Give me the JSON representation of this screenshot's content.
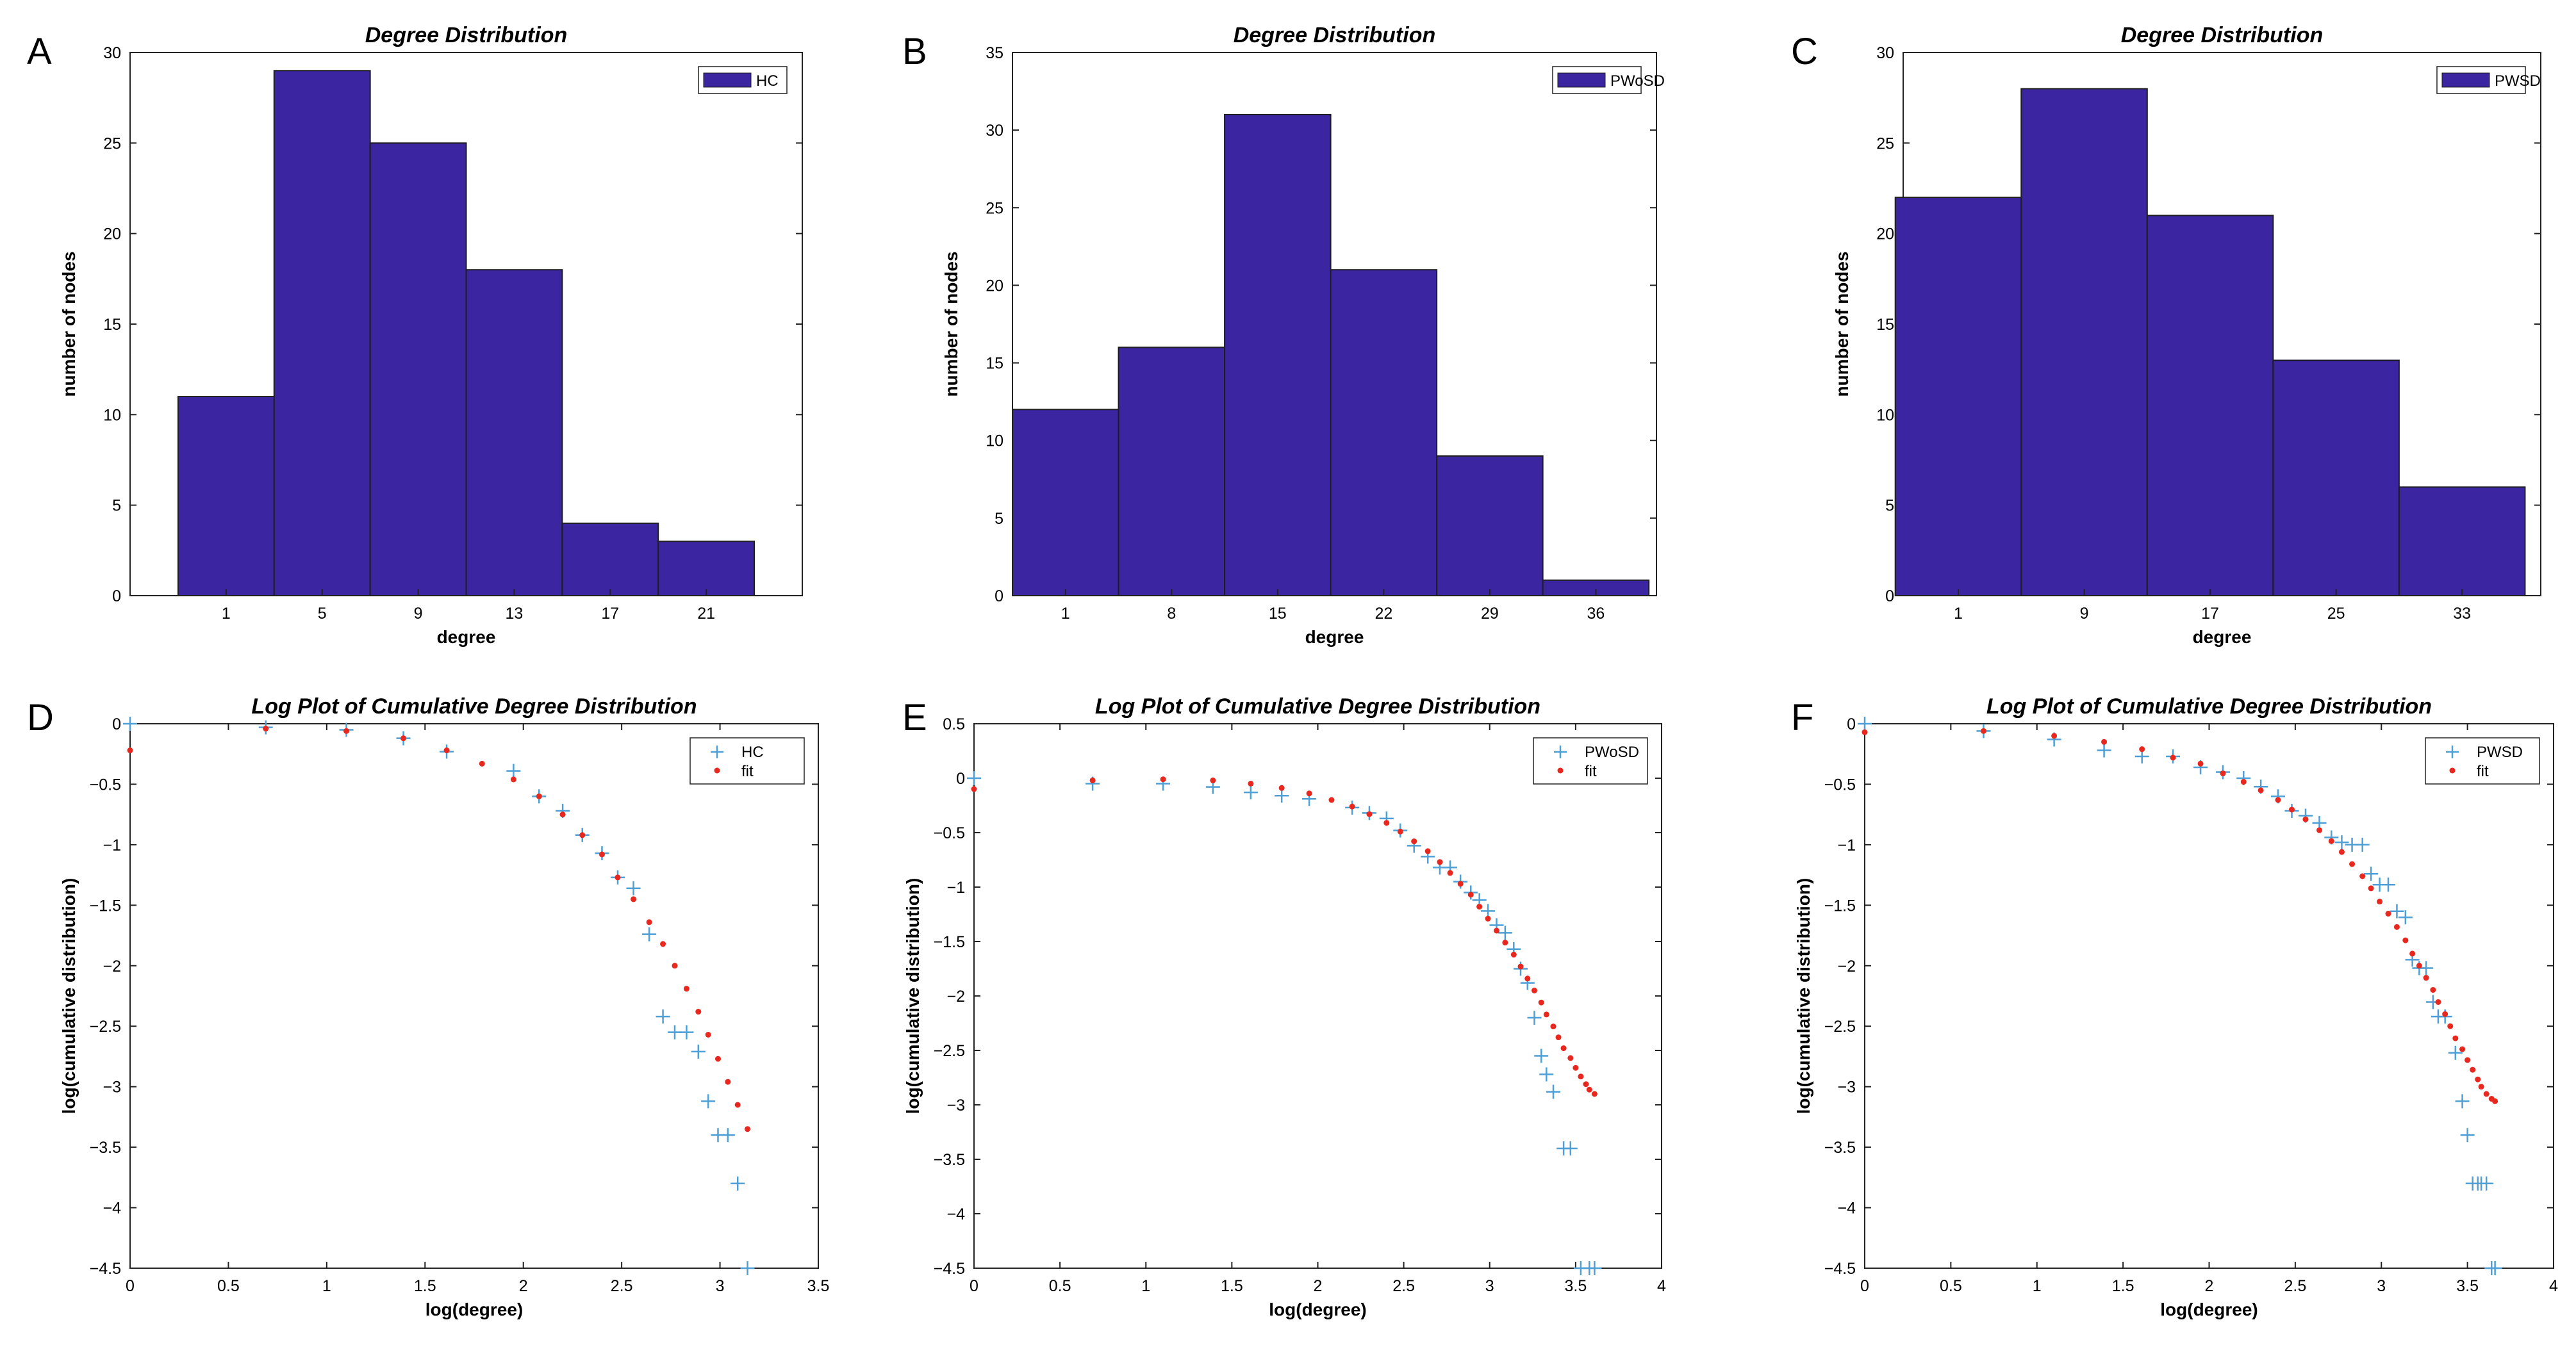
{
  "figure": {
    "panel_letters": [
      "A",
      "B",
      "C",
      "D",
      "E",
      "F"
    ]
  },
  "chart_data": [
    {
      "panel": "A",
      "type": "bar",
      "title": "Degree Distribution",
      "xlabel": "degree",
      "ylabel": "number of nodes",
      "categories": [
        "1",
        "5",
        "9",
        "13",
        "17",
        "21"
      ],
      "values": [
        11,
        29,
        25,
        18,
        4,
        3
      ],
      "xlim": [
        -3,
        25
      ],
      "bin_width": 4,
      "ylim": [
        0,
        30
      ],
      "yticks": [
        0,
        5,
        10,
        15,
        20,
        25,
        30
      ],
      "legend": [
        "HC"
      ],
      "legend_position": "top-right",
      "bar_color": "#3b25a0"
    },
    {
      "panel": "B",
      "type": "bar",
      "title": "Degree Distribution",
      "xlabel": "degree",
      "ylabel": "number of nodes",
      "categories": [
        "1",
        "8",
        "15",
        "22",
        "29",
        "36"
      ],
      "values": [
        12,
        16,
        31,
        21,
        9,
        1
      ],
      "xlim": [
        -2.5,
        40
      ],
      "bin_width": 7,
      "ylim": [
        0,
        35
      ],
      "yticks": [
        0,
        5,
        10,
        15,
        20,
        25,
        30,
        35
      ],
      "legend": [
        "PWoSD"
      ],
      "legend_position": "top-right",
      "bar_color": "#3b25a0"
    },
    {
      "panel": "C",
      "type": "bar",
      "title": "Degree Distribution",
      "xlabel": "degree",
      "ylabel": "number of nodes",
      "categories": [
        "1",
        "9",
        "17",
        "25",
        "33"
      ],
      "values": [
        22,
        28,
        21,
        13,
        6
      ],
      "xlim": [
        -2.5,
        38
      ],
      "bin_width": 8,
      "ylim": [
        0,
        30
      ],
      "yticks": [
        0,
        5,
        10,
        15,
        20,
        25,
        30
      ],
      "legend": [
        "PWSD"
      ],
      "legend_position": "top-right",
      "bar_color": "#3b25a0"
    },
    {
      "panel": "D",
      "type": "scatter",
      "title": "Log Plot of Cumulative Degree Distribution",
      "xlabel": "log(degree)",
      "ylabel": "log(cumulative distribution)",
      "xlim": [
        0,
        3.5
      ],
      "ylim": [
        -4.5,
        0
      ],
      "xticks": [
        0,
        0.5,
        1,
        1.5,
        2,
        2.5,
        3,
        3.5
      ],
      "yticks": [
        0,
        -0.5,
        -1,
        -1.5,
        -2,
        -2.5,
        -3,
        -3.5,
        -4,
        -4.5
      ],
      "legend_position": "top-right",
      "series": [
        {
          "name": "HC",
          "marker": "+",
          "color": "#4d9fd6",
          "x": [
            0,
            0.69,
            1.1,
            1.39,
            1.61,
            1.95,
            2.08,
            2.2,
            2.3,
            2.4,
            2.48,
            2.56,
            2.64,
            2.71,
            2.77,
            2.83,
            2.89,
            2.94,
            2.99,
            3.04,
            3.09,
            3.14
          ],
          "y": [
            0,
            -0.03,
            -0.05,
            -0.12,
            -0.23,
            -0.39,
            -0.6,
            -0.72,
            -0.92,
            -1.07,
            -1.27,
            -1.36,
            -1.74,
            -2.42,
            -2.55,
            -2.55,
            -2.71,
            -3.12,
            -3.4,
            -3.4,
            -3.8,
            -4.5
          ]
        },
        {
          "name": "fit",
          "marker": "dot",
          "color": "#e8281e",
          "x": [
            0,
            0.69,
            1.1,
            1.39,
            1.61,
            1.79,
            1.95,
            2.08,
            2.2,
            2.3,
            2.4,
            2.48,
            2.56,
            2.64,
            2.71,
            2.77,
            2.83,
            2.89,
            2.94,
            2.99,
            3.04,
            3.09,
            3.14
          ],
          "y": [
            -0.22,
            -0.04,
            -0.06,
            -0.12,
            -0.22,
            -0.33,
            -0.46,
            -0.6,
            -0.75,
            -0.92,
            -1.08,
            -1.27,
            -1.45,
            -1.64,
            -1.82,
            -2.0,
            -2.19,
            -2.38,
            -2.57,
            -2.77,
            -2.96,
            -3.15,
            -3.35
          ]
        }
      ]
    },
    {
      "panel": "E",
      "type": "scatter",
      "title": "Log Plot of Cumulative Degree Distribution",
      "xlabel": "log(degree)",
      "ylabel": "log(cumulative distribution)",
      "xlim": [
        0,
        4
      ],
      "ylim": [
        -4.5,
        0.5
      ],
      "xticks": [
        0,
        0.5,
        1,
        1.5,
        2,
        2.5,
        3,
        3.5,
        4
      ],
      "yticks": [
        0.5,
        0,
        -0.5,
        -1,
        -1.5,
        -2,
        -2.5,
        -3,
        -3.5,
        -4,
        -4.5
      ],
      "legend_position": "top-right",
      "series": [
        {
          "name": "PWoSD",
          "marker": "+",
          "color": "#4d9fd6",
          "x": [
            0,
            0.69,
            1.1,
            1.39,
            1.61,
            1.79,
            1.95,
            2.2,
            2.3,
            2.4,
            2.48,
            2.56,
            2.64,
            2.71,
            2.77,
            2.83,
            2.89,
            2.94,
            2.99,
            3.04,
            3.09,
            3.14,
            3.18,
            3.22,
            3.26,
            3.3,
            3.33,
            3.37,
            3.43,
            3.47,
            3.53,
            3.58,
            3.61
          ],
          "y": [
            0,
            -0.05,
            -0.05,
            -0.08,
            -0.13,
            -0.16,
            -0.19,
            -0.27,
            -0.32,
            -0.37,
            -0.48,
            -0.62,
            -0.72,
            -0.82,
            -0.82,
            -0.95,
            -1.05,
            -1.12,
            -1.22,
            -1.35,
            -1.42,
            -1.57,
            -1.75,
            -1.88,
            -2.2,
            -2.55,
            -2.72,
            -2.88,
            -3.4,
            -3.4,
            -4.5,
            -4.5,
            -4.5
          ]
        },
        {
          "name": "fit",
          "marker": "dot",
          "color": "#e8281e",
          "x": [
            0,
            0.69,
            1.1,
            1.39,
            1.61,
            1.79,
            1.95,
            2.08,
            2.2,
            2.3,
            2.4,
            2.48,
            2.56,
            2.64,
            2.71,
            2.77,
            2.83,
            2.89,
            2.94,
            2.99,
            3.04,
            3.09,
            3.14,
            3.18,
            3.22,
            3.26,
            3.3,
            3.33,
            3.37,
            3.4,
            3.43,
            3.47,
            3.5,
            3.53,
            3.56,
            3.58,
            3.61
          ],
          "y": [
            -0.1,
            -0.02,
            -0.01,
            -0.02,
            -0.05,
            -0.09,
            -0.14,
            -0.2,
            -0.26,
            -0.33,
            -0.41,
            -0.49,
            -0.58,
            -0.67,
            -0.77,
            -0.87,
            -0.97,
            -1.07,
            -1.18,
            -1.29,
            -1.4,
            -1.51,
            -1.62,
            -1.73,
            -1.84,
            -1.95,
            -2.06,
            -2.17,
            -2.28,
            -2.38,
            -2.48,
            -2.57,
            -2.66,
            -2.74,
            -2.81,
            -2.86,
            -2.9
          ]
        }
      ]
    },
    {
      "panel": "F",
      "type": "scatter",
      "title": "Log Plot of Cumulative Degree Distribution",
      "xlabel": "log(degree)",
      "ylabel": "log(cumulative distribution)",
      "xlim": [
        0,
        4
      ],
      "ylim": [
        -4.5,
        0
      ],
      "xticks": [
        0,
        0.5,
        1,
        1.5,
        2,
        2.5,
        3,
        3.5,
        4
      ],
      "yticks": [
        0,
        -0.5,
        -1,
        -1.5,
        -2,
        -2.5,
        -3,
        -3.5,
        -4,
        -4.5
      ],
      "legend_position": "top-right",
      "series": [
        {
          "name": "PWSD",
          "marker": "+",
          "color": "#4d9fd6",
          "x": [
            0,
            0.69,
            1.1,
            1.39,
            1.61,
            1.79,
            1.95,
            2.08,
            2.2,
            2.3,
            2.4,
            2.48,
            2.56,
            2.64,
            2.71,
            2.77,
            2.83,
            2.89,
            2.94,
            2.99,
            3.04,
            3.09,
            3.14,
            3.18,
            3.22,
            3.26,
            3.3,
            3.33,
            3.37,
            3.43,
            3.47,
            3.5,
            3.53,
            3.56,
            3.58,
            3.61,
            3.64,
            3.66
          ],
          "y": [
            0,
            -0.06,
            -0.13,
            -0.22,
            -0.27,
            -0.27,
            -0.36,
            -0.4,
            -0.45,
            -0.52,
            -0.6,
            -0.72,
            -0.76,
            -0.82,
            -0.94,
            -0.98,
            -1.0,
            -1.0,
            -1.24,
            -1.33,
            -1.33,
            -1.55,
            -1.6,
            -1.95,
            -2.02,
            -2.02,
            -2.3,
            -2.42,
            -2.42,
            -2.72,
            -3.12,
            -3.4,
            -3.8,
            -3.8,
            -3.8,
            -3.8,
            -4.5,
            -4.5
          ]
        },
        {
          "name": "fit",
          "marker": "dot",
          "color": "#e8281e",
          "x": [
            0,
            0.69,
            1.1,
            1.39,
            1.61,
            1.79,
            1.95,
            2.08,
            2.2,
            2.3,
            2.4,
            2.48,
            2.56,
            2.64,
            2.71,
            2.77,
            2.83,
            2.89,
            2.94,
            2.99,
            3.04,
            3.09,
            3.14,
            3.18,
            3.22,
            3.26,
            3.3,
            3.33,
            3.37,
            3.4,
            3.43,
            3.47,
            3.5,
            3.53,
            3.56,
            3.58,
            3.61,
            3.64,
            3.66
          ],
          "y": [
            -0.07,
            -0.06,
            -0.1,
            -0.15,
            -0.21,
            -0.28,
            -0.33,
            -0.41,
            -0.48,
            -0.55,
            -0.63,
            -0.71,
            -0.79,
            -0.88,
            -0.97,
            -1.06,
            -1.16,
            -1.26,
            -1.36,
            -1.47,
            -1.57,
            -1.68,
            -1.79,
            -1.9,
            -2.0,
            -2.1,
            -2.2,
            -2.3,
            -2.4,
            -2.5,
            -2.6,
            -2.69,
            -2.78,
            -2.86,
            -2.94,
            -3.0,
            -3.06,
            -3.1,
            -3.12
          ]
        }
      ]
    }
  ]
}
